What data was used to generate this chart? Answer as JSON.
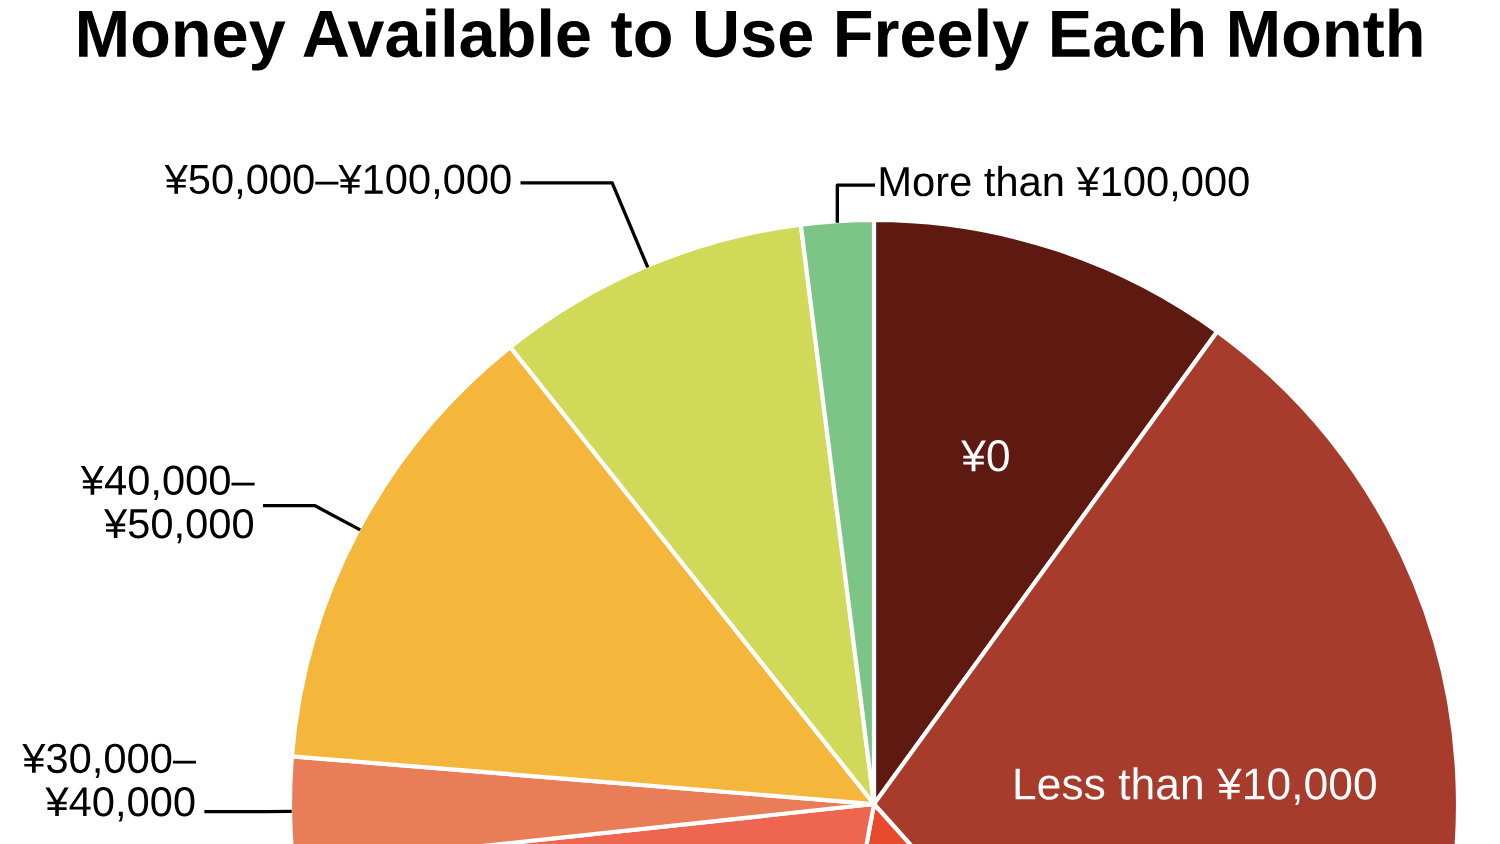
{
  "chart_data": {
    "type": "pie",
    "title": "Money Available to Use Freely Each Month",
    "categories": [
      "¥0",
      "Less than ¥10,000",
      null,
      null,
      "¥30,000–\n¥40,000",
      "¥40,000–\n¥50,000",
      "¥50,000–¥100,000",
      "More than ¥100,000"
    ],
    "values": [
      10.0,
      28.4,
      14.5,
      20.4,
      3.0,
      13.0,
      8.7,
      2.0
    ],
    "colors": [
      "#5e1a10",
      "#a83c2c",
      "#e84a2e",
      "#ee6650",
      "#e87d57",
      "#f4b63b",
      "#d0d958",
      "#7dc487"
    ]
  }
}
